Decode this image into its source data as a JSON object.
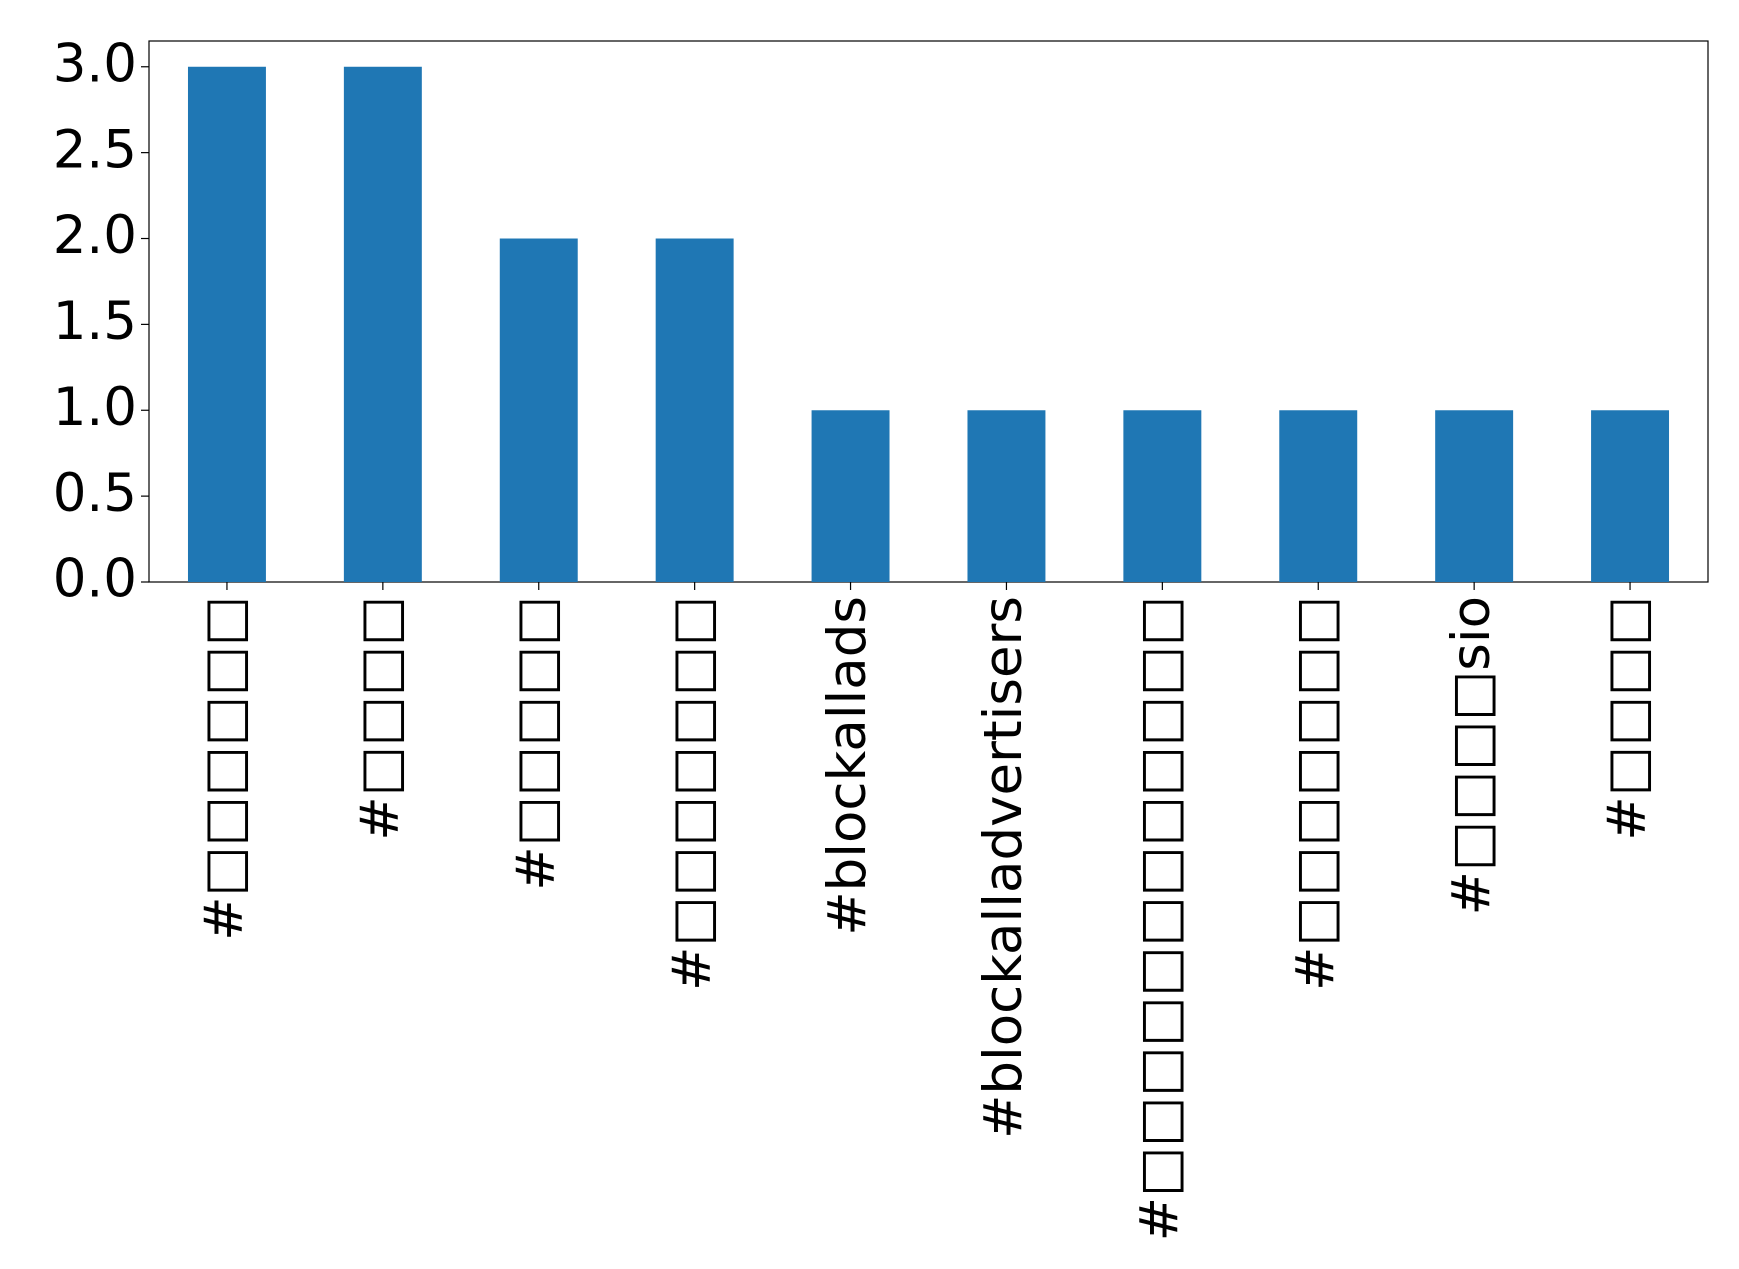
{
  "chart_data": {
    "type": "bar",
    "categories": [
      "#□□□□□□",
      "#□□□□",
      "#□□□□□",
      "#□□□□□□□",
      "#blockallads",
      "#blockalladvertisers",
      "#□□□□□□□□□□□□",
      "#□□□□□□□",
      "#□□□□sio",
      "#□□□□"
    ],
    "values": [
      3,
      3,
      2,
      2,
      1,
      1,
      1,
      1,
      1,
      1
    ],
    "color": "#1f77b4",
    "ylim": [
      0,
      3.15
    ],
    "yticks": [
      {
        "value": 0,
        "label": "0.0"
      },
      {
        "value": 0.5,
        "label": "0.5"
      },
      {
        "value": 1,
        "label": "1.0"
      },
      {
        "value": 1.5,
        "label": "1.5"
      },
      {
        "value": 2,
        "label": "2.0"
      },
      {
        "value": 2.5,
        "label": "2.5"
      },
      {
        "value": 3,
        "label": "3.0"
      }
    ],
    "grid": false
  }
}
